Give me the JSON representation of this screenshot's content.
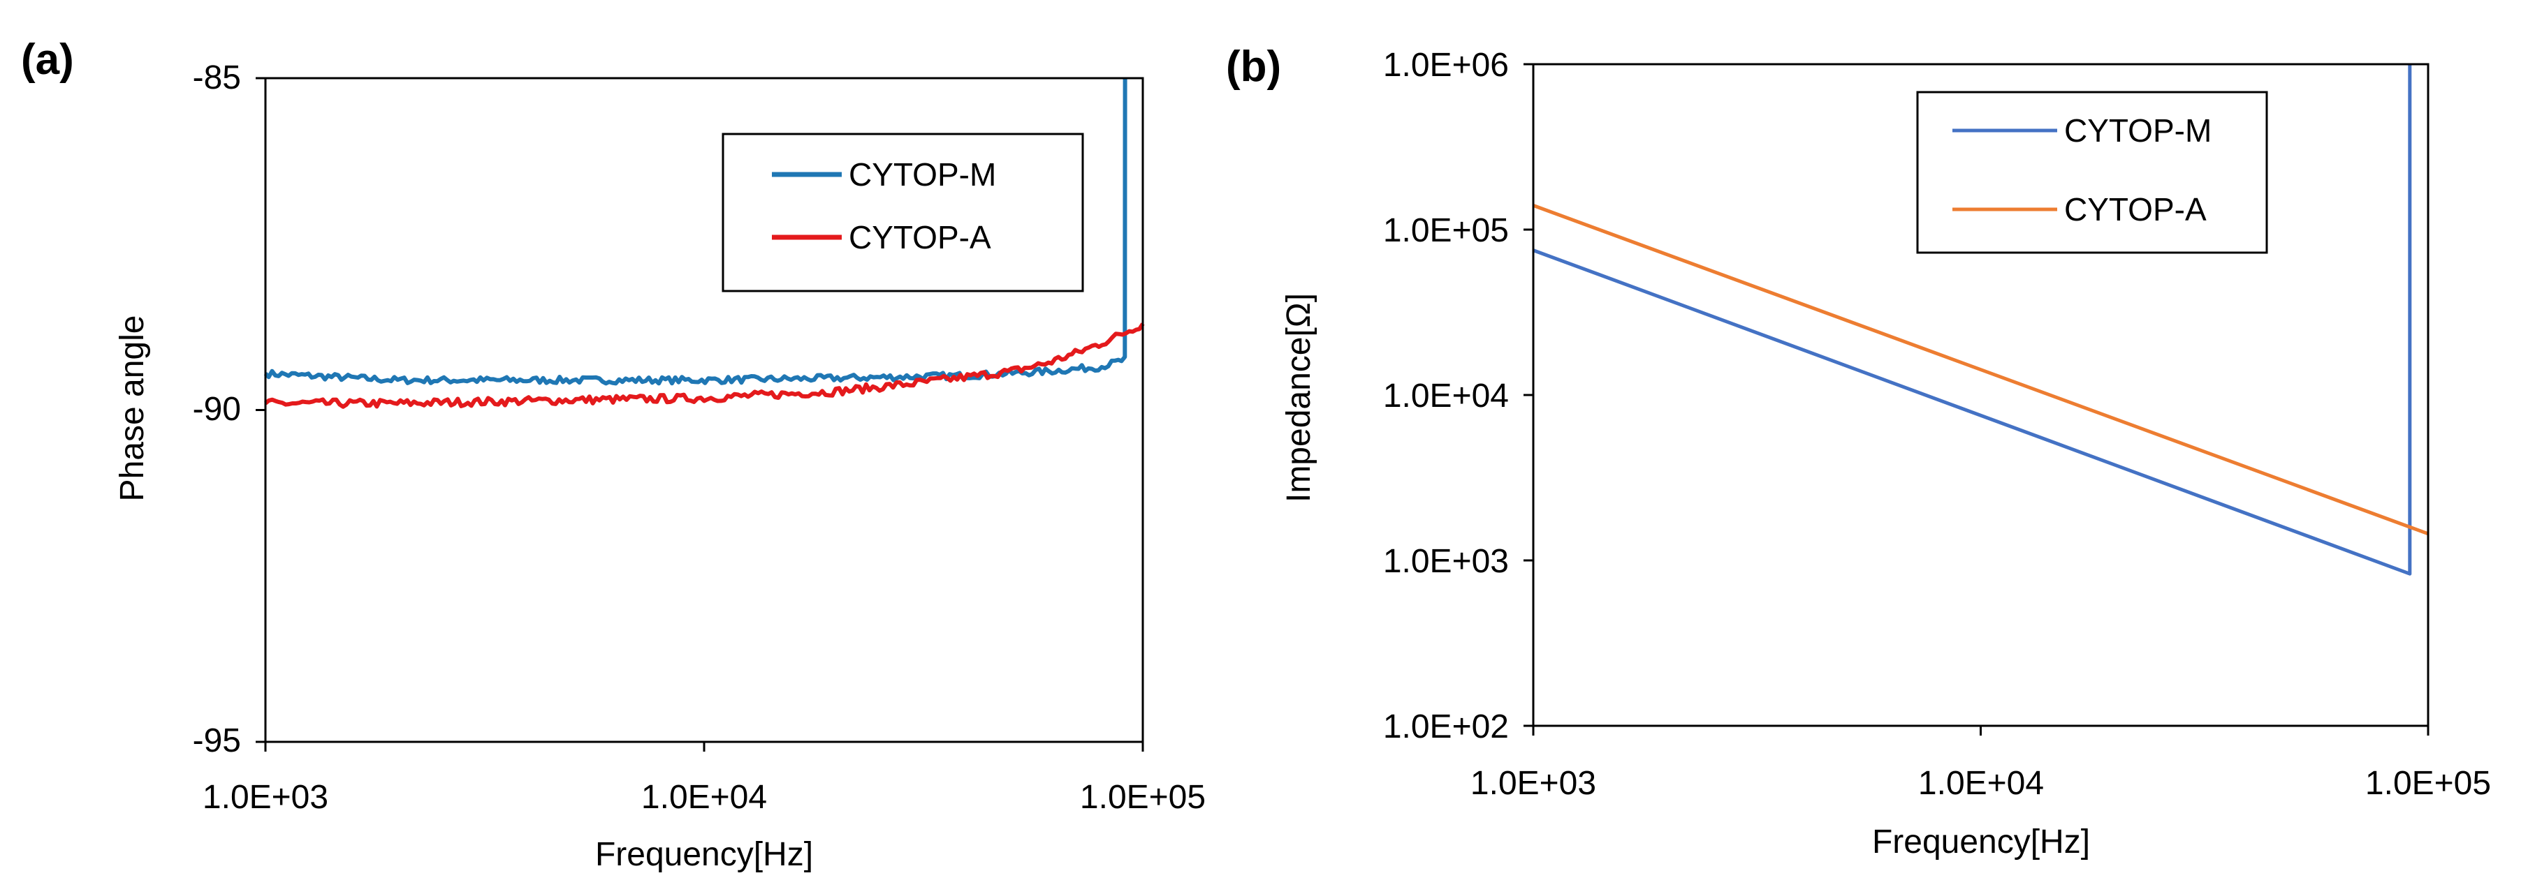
{
  "chart_data": [
    {
      "panel_label": "(a)",
      "type": "line",
      "xlabel": "Frequency[Hz]",
      "ylabel": "Phase angle",
      "x_scale": "log",
      "xlim": [
        1000,
        100000
      ],
      "ylim": [
        -95,
        -85
      ],
      "x_ticks": [
        1000,
        10000,
        100000
      ],
      "x_tick_labels": [
        "1.0E+03",
        "1.0E+04",
        "1.0E+05"
      ],
      "y_ticks": [
        -85,
        -90,
        -95
      ],
      "y_tick_labels": [
        "-85",
        "-90",
        "-95"
      ],
      "grid": false,
      "legend_position": "top-right",
      "series": [
        {
          "name": "CYTOP-M",
          "color": "#1f77b4",
          "noise": 0.05,
          "x": [
            1000,
            2000,
            5000,
            10000,
            20000,
            40000,
            60000,
            80000,
            90000,
            91000,
            91100
          ],
          "y": [
            -89.45,
            -89.55,
            -89.55,
            -89.55,
            -89.52,
            -89.48,
            -89.42,
            -89.35,
            -89.25,
            -89.2,
            -85
          ]
        },
        {
          "name": "CYTOP-A",
          "color": "#e41a1c",
          "noise": 0.06,
          "x": [
            1000,
            2000,
            5000,
            10000,
            20000,
            30000,
            40000,
            50000,
            60000,
            70000,
            80000,
            90000,
            100000
          ],
          "y": [
            -89.9,
            -89.9,
            -89.85,
            -89.82,
            -89.72,
            -89.6,
            -89.5,
            -89.42,
            -89.3,
            -89.15,
            -89.0,
            -88.85,
            -88.7
          ]
        }
      ]
    },
    {
      "panel_label": "(b)",
      "type": "line",
      "xlabel": "Frequency[Hz]",
      "ylabel": "Impedance[Ω]",
      "x_scale": "log",
      "y_scale": "log",
      "xlim": [
        1000,
        100000
      ],
      "ylim": [
        100,
        1000000
      ],
      "x_ticks": [
        1000,
        10000,
        100000
      ],
      "x_tick_labels": [
        "1.0E+03",
        "1.0E+04",
        "1.0E+05"
      ],
      "y_ticks": [
        1000000,
        100000,
        10000,
        1000,
        100
      ],
      "y_tick_labels": [
        "1.0E+06",
        "1.0E+05",
        "1.0E+04",
        "1.0E+03",
        "1.0E+02"
      ],
      "grid": false,
      "legend_position": "top-right",
      "series": [
        {
          "name": "CYTOP-M",
          "color": "#4472c4",
          "x": [
            1000,
            91000,
            91000
          ],
          "y": [
            75000,
            830,
            1000000
          ]
        },
        {
          "name": "CYTOP-A",
          "color": "#ed7d31",
          "x": [
            1000,
            100000
          ],
          "y": [
            140000,
            1450
          ]
        }
      ]
    }
  ]
}
